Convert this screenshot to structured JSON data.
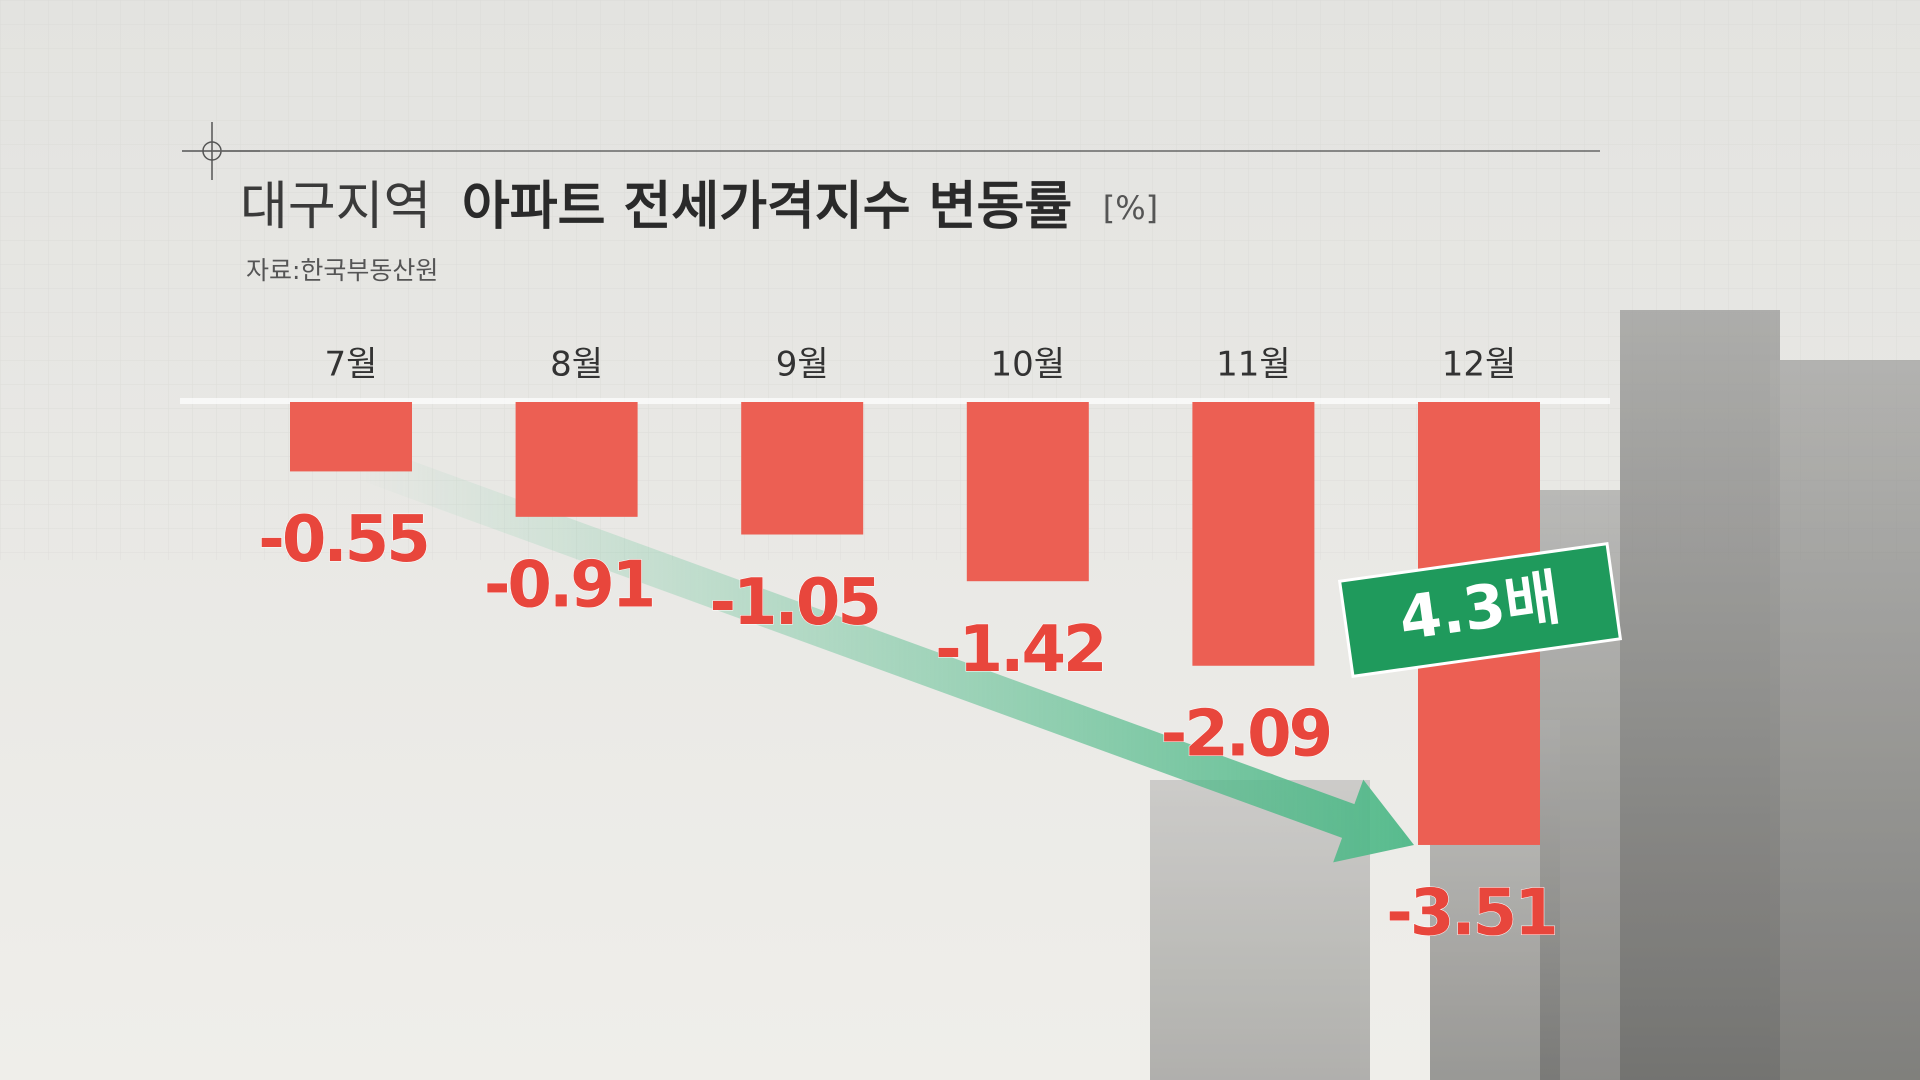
{
  "chart_data": {
    "type": "bar",
    "title": [
      "대구지역",
      "아파트 전세가격지수 변동률"
    ],
    "unit": "[%]",
    "source": "자료:한국부동산원",
    "categories": [
      "7월",
      "8월",
      "9월",
      "10월",
      "11월",
      "12월"
    ],
    "values": [
      -0.55,
      -0.91,
      -1.05,
      -1.42,
      -2.09,
      -3.51
    ],
    "color": "#ec5f53",
    "annotation": "4.3배",
    "annotation_color": "#1f9a5c"
  }
}
